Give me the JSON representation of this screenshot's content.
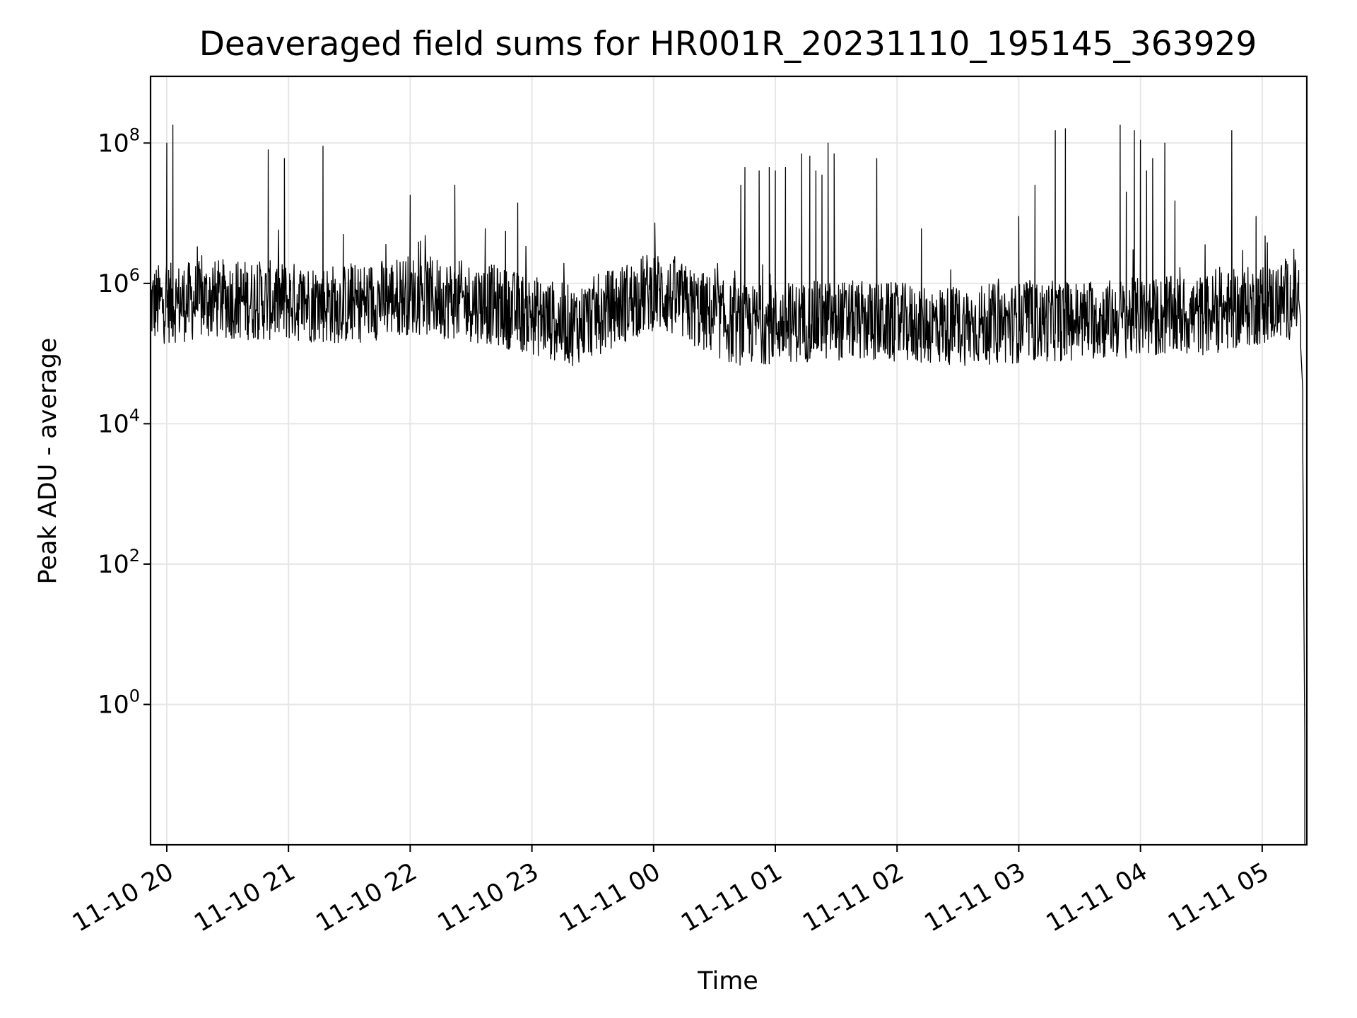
{
  "chart_data": {
    "type": "line",
    "title": "Deaveraged field sums for HR001R_20231110_195145_363929",
    "xlabel": "Time",
    "ylabel": "Peak ADU - average",
    "yscale": "log",
    "ylim_exp": [
      -2.0,
      8.95
    ],
    "xlim": [
      "2023-11-10 19:52",
      "2023-11-11 05:22"
    ],
    "grid": true,
    "line_color": "#000000",
    "x_ticks": [
      "11-10 20",
      "11-10 21",
      "11-10 22",
      "11-10 23",
      "11-11 00",
      "11-11 01",
      "11-11 02",
      "11-11 03",
      "11-11 04",
      "11-11 05"
    ],
    "y_ticks": [
      {
        "base": "10",
        "exp": "0"
      },
      {
        "base": "10",
        "exp": "2"
      },
      {
        "base": "10",
        "exp": "4"
      },
      {
        "base": "10",
        "exp": "6"
      },
      {
        "base": "10",
        "exp": "8"
      }
    ],
    "baseline": [
      {
        "x": "2023-11-10 19:52",
        "y": 500000
      },
      {
        "x": "2023-11-10 20:30",
        "y": 600000
      },
      {
        "x": "2023-11-10 21:30",
        "y": 500000
      },
      {
        "x": "2023-11-10 22:00",
        "y": 700000
      },
      {
        "x": "2023-11-10 22:40",
        "y": 500000
      },
      {
        "x": "2023-11-10 23:20",
        "y": 250000
      },
      {
        "x": "2023-11-11 00:00",
        "y": 800000
      },
      {
        "x": "2023-11-11 00:40",
        "y": 250000
      },
      {
        "x": "2023-11-11 01:30",
        "y": 300000
      },
      {
        "x": "2023-11-11 02:30",
        "y": 250000
      },
      {
        "x": "2023-11-11 03:30",
        "y": 300000
      },
      {
        "x": "2023-11-11 04:30",
        "y": 350000
      },
      {
        "x": "2023-11-11 05:15",
        "y": 600000
      }
    ],
    "spikes": [
      {
        "x": "2023-11-10 20:00",
        "y": 100000000
      },
      {
        "x": "2023-11-10 20:03",
        "y": 180000000
      },
      {
        "x": "2023-11-10 20:50",
        "y": 80000000
      },
      {
        "x": "2023-11-10 20:58",
        "y": 60000000
      },
      {
        "x": "2023-11-10 21:17",
        "y": 90000000
      },
      {
        "x": "2023-11-10 21:27",
        "y": 5000000
      },
      {
        "x": "2023-11-10 22:00",
        "y": 18000000
      },
      {
        "x": "2023-11-10 22:22",
        "y": 25000000
      },
      {
        "x": "2023-11-10 22:37",
        "y": 6000000
      },
      {
        "x": "2023-11-10 22:47",
        "y": 5500000
      },
      {
        "x": "2023-11-10 22:53",
        "y": 14000000
      },
      {
        "x": "2023-11-11 00:43",
        "y": 25000000
      },
      {
        "x": "2023-11-11 00:45",
        "y": 45000000
      },
      {
        "x": "2023-11-11 00:52",
        "y": 40000000
      },
      {
        "x": "2023-11-11 00:57",
        "y": 45000000
      },
      {
        "x": "2023-11-11 01:00",
        "y": 40000000
      },
      {
        "x": "2023-11-11 01:05",
        "y": 45000000
      },
      {
        "x": "2023-11-11 01:13",
        "y": 70000000
      },
      {
        "x": "2023-11-11 01:17",
        "y": 65000000
      },
      {
        "x": "2023-11-11 01:20",
        "y": 40000000
      },
      {
        "x": "2023-11-11 01:23",
        "y": 35000000
      },
      {
        "x": "2023-11-11 01:26",
        "y": 100000000
      },
      {
        "x": "2023-11-11 01:29",
        "y": 70000000
      },
      {
        "x": "2023-11-11 01:50",
        "y": 60000000
      },
      {
        "x": "2023-11-11 02:12",
        "y": 6000000
      },
      {
        "x": "2023-11-11 03:00",
        "y": 9000000
      },
      {
        "x": "2023-11-11 03:08",
        "y": 25000000
      },
      {
        "x": "2023-11-11 03:18",
        "y": 150000000
      },
      {
        "x": "2023-11-11 03:23",
        "y": 160000000
      },
      {
        "x": "2023-11-11 03:50",
        "y": 180000000
      },
      {
        "x": "2023-11-11 03:53",
        "y": 20000000
      },
      {
        "x": "2023-11-11 03:57",
        "y": 150000000
      },
      {
        "x": "2023-11-11 04:00",
        "y": 110000000
      },
      {
        "x": "2023-11-11 04:03",
        "y": 40000000
      },
      {
        "x": "2023-11-11 04:06",
        "y": 60000000
      },
      {
        "x": "2023-11-11 04:12",
        "y": 100000000
      },
      {
        "x": "2023-11-11 04:17",
        "y": 15000000
      },
      {
        "x": "2023-11-11 04:45",
        "y": 150000000
      },
      {
        "x": "2023-11-11 04:57",
        "y": 9000000
      }
    ],
    "tail": [
      {
        "x": "2023-11-11 05:18",
        "y": 600000
      },
      {
        "x": "2023-11-11 05:19",
        "y": 300000
      },
      {
        "x": "2023-11-11 05:19",
        "y": 120000
      },
      {
        "x": "2023-11-11 05:20",
        "y": 30000
      },
      {
        "x": "2023-11-11 05:20",
        "y": 4000
      },
      {
        "x": "2023-11-11 05:21",
        "y": 0.3
      },
      {
        "x": "2023-11-11 05:21",
        "y": 0.01
      },
      {
        "x": "2023-11-11 05:21",
        "y": 0.3
      }
    ]
  }
}
